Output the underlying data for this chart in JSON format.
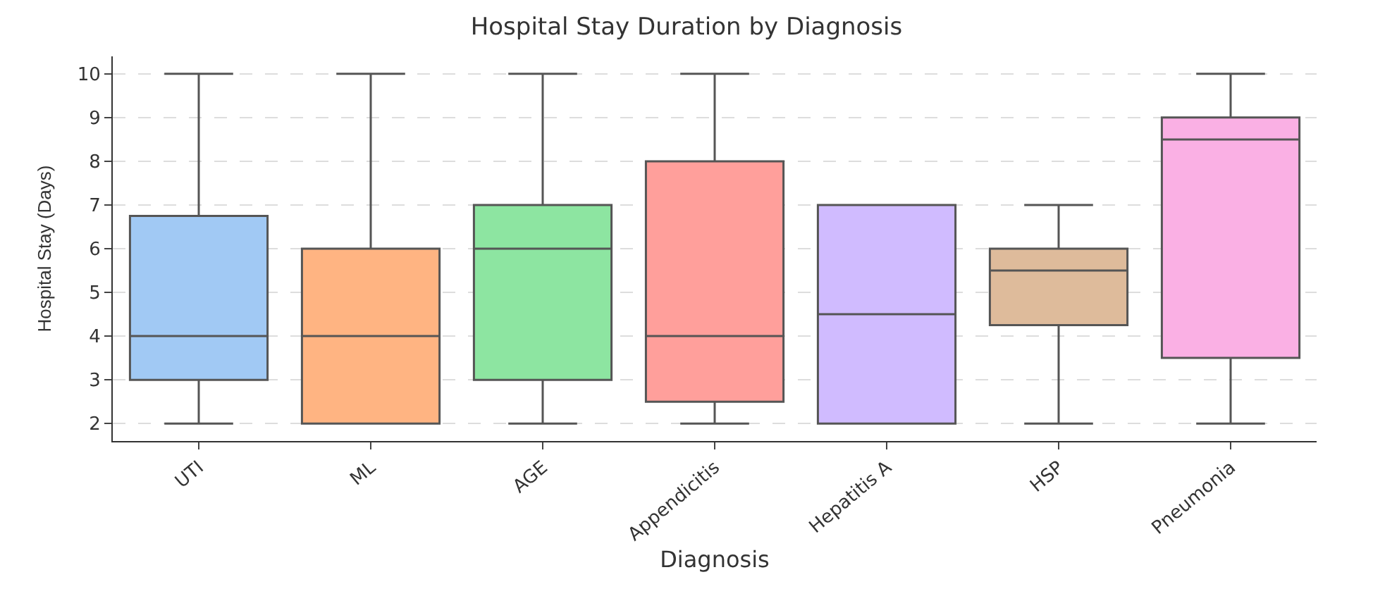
{
  "chart_data": {
    "type": "box",
    "title": "Hospital Stay Duration by Diagnosis",
    "xlabel": "Diagnosis",
    "ylabel": "Hospital Stay (Days)",
    "categories": [
      "UTI",
      "ML",
      "AGE",
      "Appendicitis",
      "Hepatitis A",
      "HSP",
      "Pneumonia"
    ],
    "colors": [
      "#a1c9f4",
      "#ffb482",
      "#8de5a1",
      "#ff9f9b",
      "#d0bbff",
      "#debb9b",
      "#fab0e4"
    ],
    "boxes": [
      {
        "low": 2,
        "q1": 3,
        "median": 4,
        "q3": 6.75,
        "high": 10
      },
      {
        "low": 2,
        "q1": 2,
        "median": 4,
        "q3": 6,
        "high": 10
      },
      {
        "low": 2,
        "q1": 3,
        "median": 6,
        "q3": 7,
        "high": 10
      },
      {
        "low": 2,
        "q1": 2.5,
        "median": 4,
        "q3": 8,
        "high": 10
      },
      {
        "low": 2,
        "q1": 2,
        "median": 4.5,
        "q3": 7,
        "high": 7
      },
      {
        "low": 2,
        "q1": 4.25,
        "median": 5.5,
        "q3": 6,
        "high": 7
      },
      {
        "low": 2,
        "q1": 3.5,
        "median": 8.5,
        "q3": 9,
        "high": 10
      }
    ],
    "ylim": [
      1.6,
      10.4
    ],
    "yticks": [
      2,
      3,
      4,
      5,
      6,
      7,
      8,
      9,
      10
    ],
    "grid": "y"
  }
}
